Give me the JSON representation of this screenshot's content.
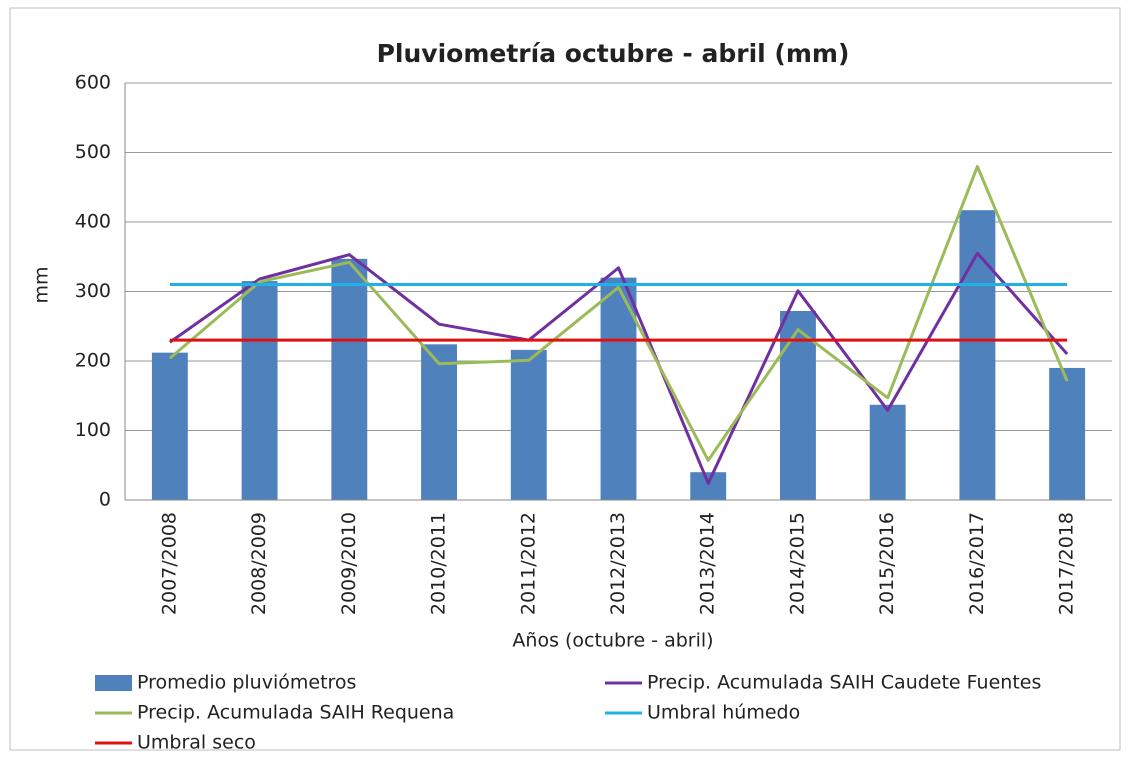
{
  "chart_data": {
    "type": "combo",
    "title": "Pluviometría octubre - abril (mm)",
    "x_label": "Años (octubre - abril)",
    "y_label": "mm",
    "categories": [
      "2007/2008",
      "2008/2009",
      "2009/2010",
      "2010/2011",
      "2011/2012",
      "2012/2013",
      "2013/2014",
      "2014/2015",
      "2015/2016",
      "2016/2017",
      "2017/2018"
    ],
    "series": [
      {
        "name": "Promedio pluviómetros",
        "type": "bar",
        "color": "#4f81bd",
        "values": [
          212,
          315,
          347,
          224,
          216,
          320,
          40,
          272,
          137,
          417,
          190
        ]
      },
      {
        "name": "Precip. Acumulada SAIH Caudete Fuentes",
        "type": "line",
        "color": "#7030a0",
        "values": [
          227,
          318,
          353,
          253,
          230,
          334,
          24,
          301,
          129,
          355,
          210
        ]
      },
      {
        "name": "Precip. Acumulada SAIH Requena",
        "type": "line",
        "color": "#9bbb59",
        "values": [
          204,
          314,
          342,
          196,
          201,
          306,
          57,
          245,
          147,
          480,
          171
        ]
      },
      {
        "name": "Umbral húmedo",
        "type": "line",
        "color": "#1fb2e6",
        "values": [
          310,
          310,
          310,
          310,
          310,
          310,
          310,
          310,
          310,
          310,
          310
        ]
      },
      {
        "name": "Umbral seco",
        "type": "line",
        "color": "#e01010",
        "values": [
          230,
          230,
          230,
          230,
          230,
          230,
          230,
          230,
          230,
          230,
          230
        ]
      }
    ],
    "ylim": [
      0,
      600
    ],
    "yticks": [
      0,
      100,
      200,
      300,
      400,
      500,
      600
    ],
    "grid": true
  }
}
